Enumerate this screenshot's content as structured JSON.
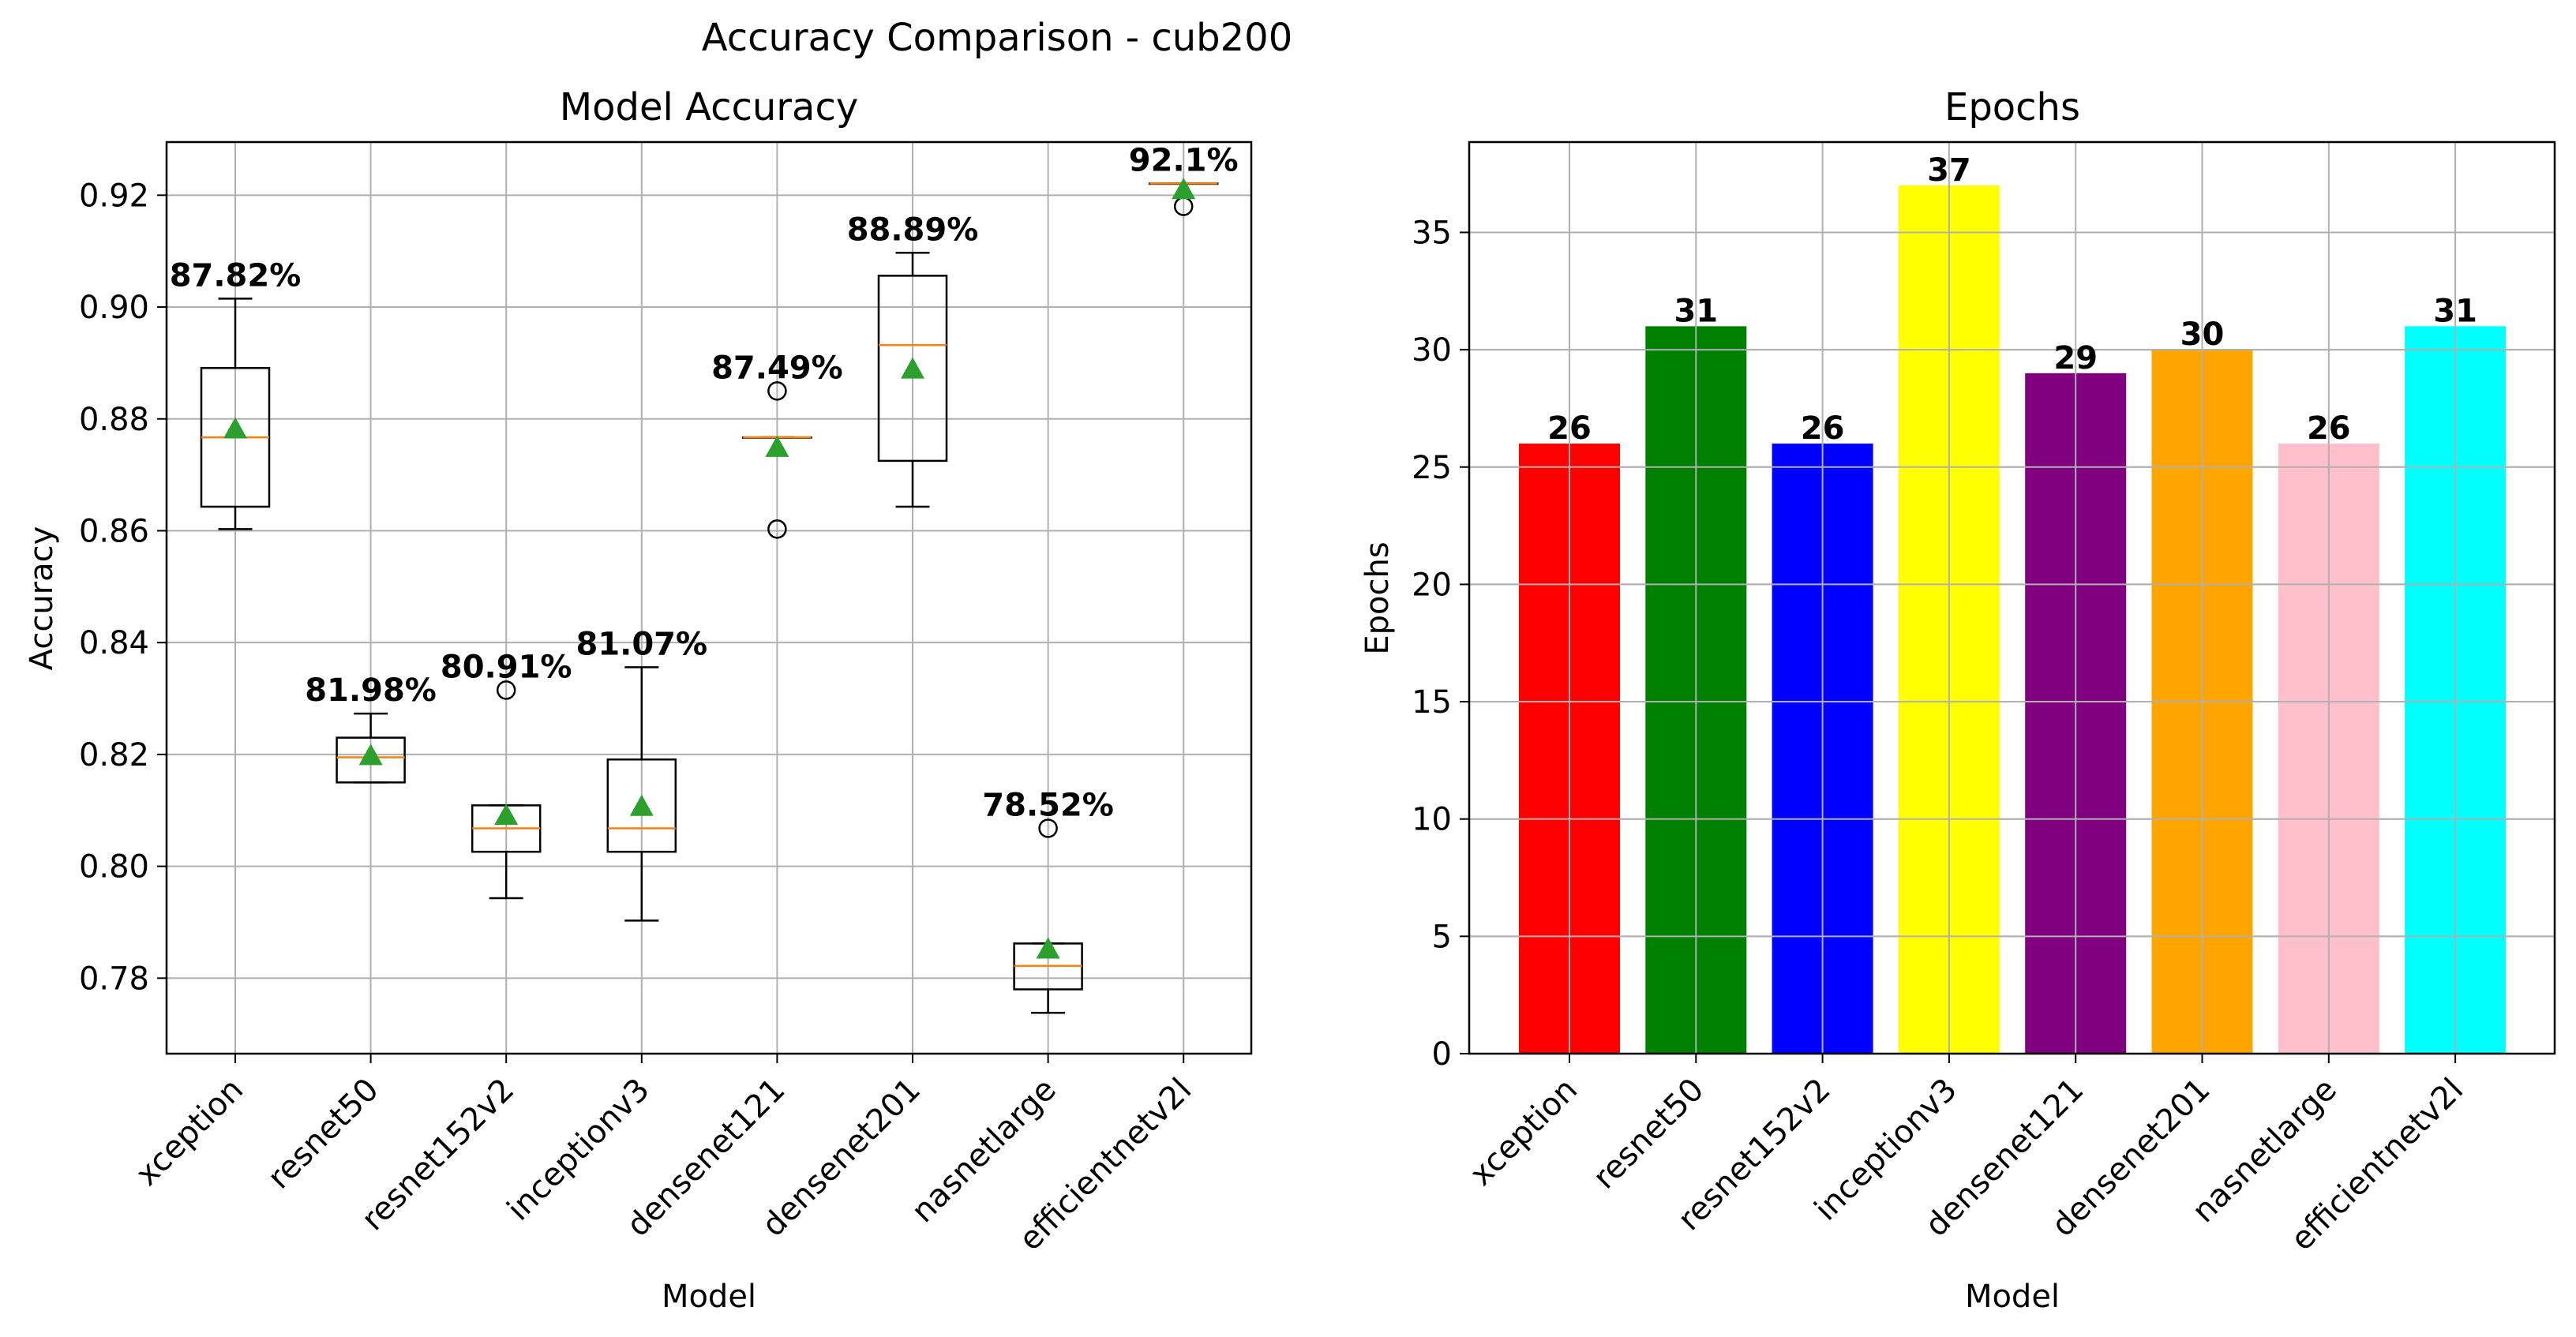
{
  "figure": {
    "suptitle": "Accuracy Comparison - cub200"
  },
  "chart_data": [
    {
      "type": "box",
      "title": "Model Accuracy",
      "xlabel": "Model",
      "ylabel": "Accuracy",
      "ylim": [
        0.7665,
        0.9295
      ],
      "yticks": [
        0.78,
        0.8,
        0.82,
        0.84,
        0.86,
        0.88,
        0.9,
        0.92
      ],
      "ytick_labels": [
        "0.78",
        "0.80",
        "0.82",
        "0.84",
        "0.86",
        "0.88",
        "0.90",
        "0.92"
      ],
      "grid": true,
      "categories": [
        "xception",
        "resnet50",
        "resnet152v2",
        "inceptionv3",
        "densenet121",
        "densenet201",
        "nasnetlarge",
        "efficientnetv2l"
      ],
      "boxes": [
        {
          "q1": 0.8643,
          "median": 0.8767,
          "q3": 0.8891,
          "whisker_low": 0.8603,
          "whisker_high": 0.9015,
          "mean": 0.8782,
          "outliers": [],
          "label": "87.82%"
        },
        {
          "q1": 0.815,
          "median": 0.8195,
          "q3": 0.823,
          "whisker_low": 0.815,
          "whisker_high": 0.8273,
          "mean": 0.8198,
          "outliers": [],
          "label": "81.98%"
        },
        {
          "q1": 0.8026,
          "median": 0.8068,
          "q3": 0.8109,
          "whisker_low": 0.7943,
          "whisker_high": 0.8109,
          "mean": 0.8091,
          "outliers": [
            0.8315
          ],
          "label": "80.91%"
        },
        {
          "q1": 0.8026,
          "median": 0.8068,
          "q3": 0.8191,
          "whisker_low": 0.7903,
          "whisker_high": 0.8356,
          "mean": 0.8107,
          "outliers": [],
          "label": "81.07%"
        },
        {
          "q1": 0.8767,
          "median": 0.8767,
          "q3": 0.8767,
          "whisker_low": 0.8767,
          "whisker_high": 0.8767,
          "mean": 0.8749,
          "outliers": [
            0.885,
            0.8603
          ],
          "label": "87.49%"
        },
        {
          "q1": 0.8725,
          "median": 0.8932,
          "q3": 0.9056,
          "whisker_low": 0.8643,
          "whisker_high": 0.9097,
          "mean": 0.8889,
          "outliers": [],
          "label": "88.89%"
        },
        {
          "q1": 0.778,
          "median": 0.7822,
          "q3": 0.7862,
          "whisker_low": 0.7738,
          "whisker_high": 0.7862,
          "mean": 0.7852,
          "outliers": [
            0.8068
          ],
          "label": "78.52%"
        },
        {
          "q1": 0.9221,
          "median": 0.9221,
          "q3": 0.9221,
          "whisker_low": 0.9221,
          "whisker_high": 0.9221,
          "mean": 0.921,
          "outliers": [
            0.918
          ],
          "label": "92.1%"
        }
      ],
      "colors": {
        "median": "#ff7f0e",
        "mean": "#2ca02c",
        "box": "#000000"
      }
    },
    {
      "type": "bar",
      "title": "Epochs",
      "xlabel": "Model",
      "ylabel": "Epochs",
      "ylim": [
        0,
        38.85
      ],
      "yticks": [
        0,
        5,
        10,
        15,
        20,
        25,
        30,
        35
      ],
      "ytick_labels": [
        "0",
        "5",
        "10",
        "15",
        "20",
        "25",
        "30",
        "35"
      ],
      "grid": true,
      "categories": [
        "xception",
        "resnet50",
        "resnet152v2",
        "inceptionv3",
        "densenet121",
        "densenet201",
        "nasnetlarge",
        "efficientnetv2l"
      ],
      "values": [
        26,
        31,
        26,
        37,
        29,
        30,
        26,
        31
      ],
      "value_labels": [
        "26",
        "31",
        "26",
        "37",
        "29",
        "30",
        "26",
        "31"
      ],
      "colors": [
        "#ff0000",
        "#008000",
        "#0000ff",
        "#ffff00",
        "#800080",
        "#ffa500",
        "#ffc0cb",
        "#00ffff"
      ]
    }
  ]
}
